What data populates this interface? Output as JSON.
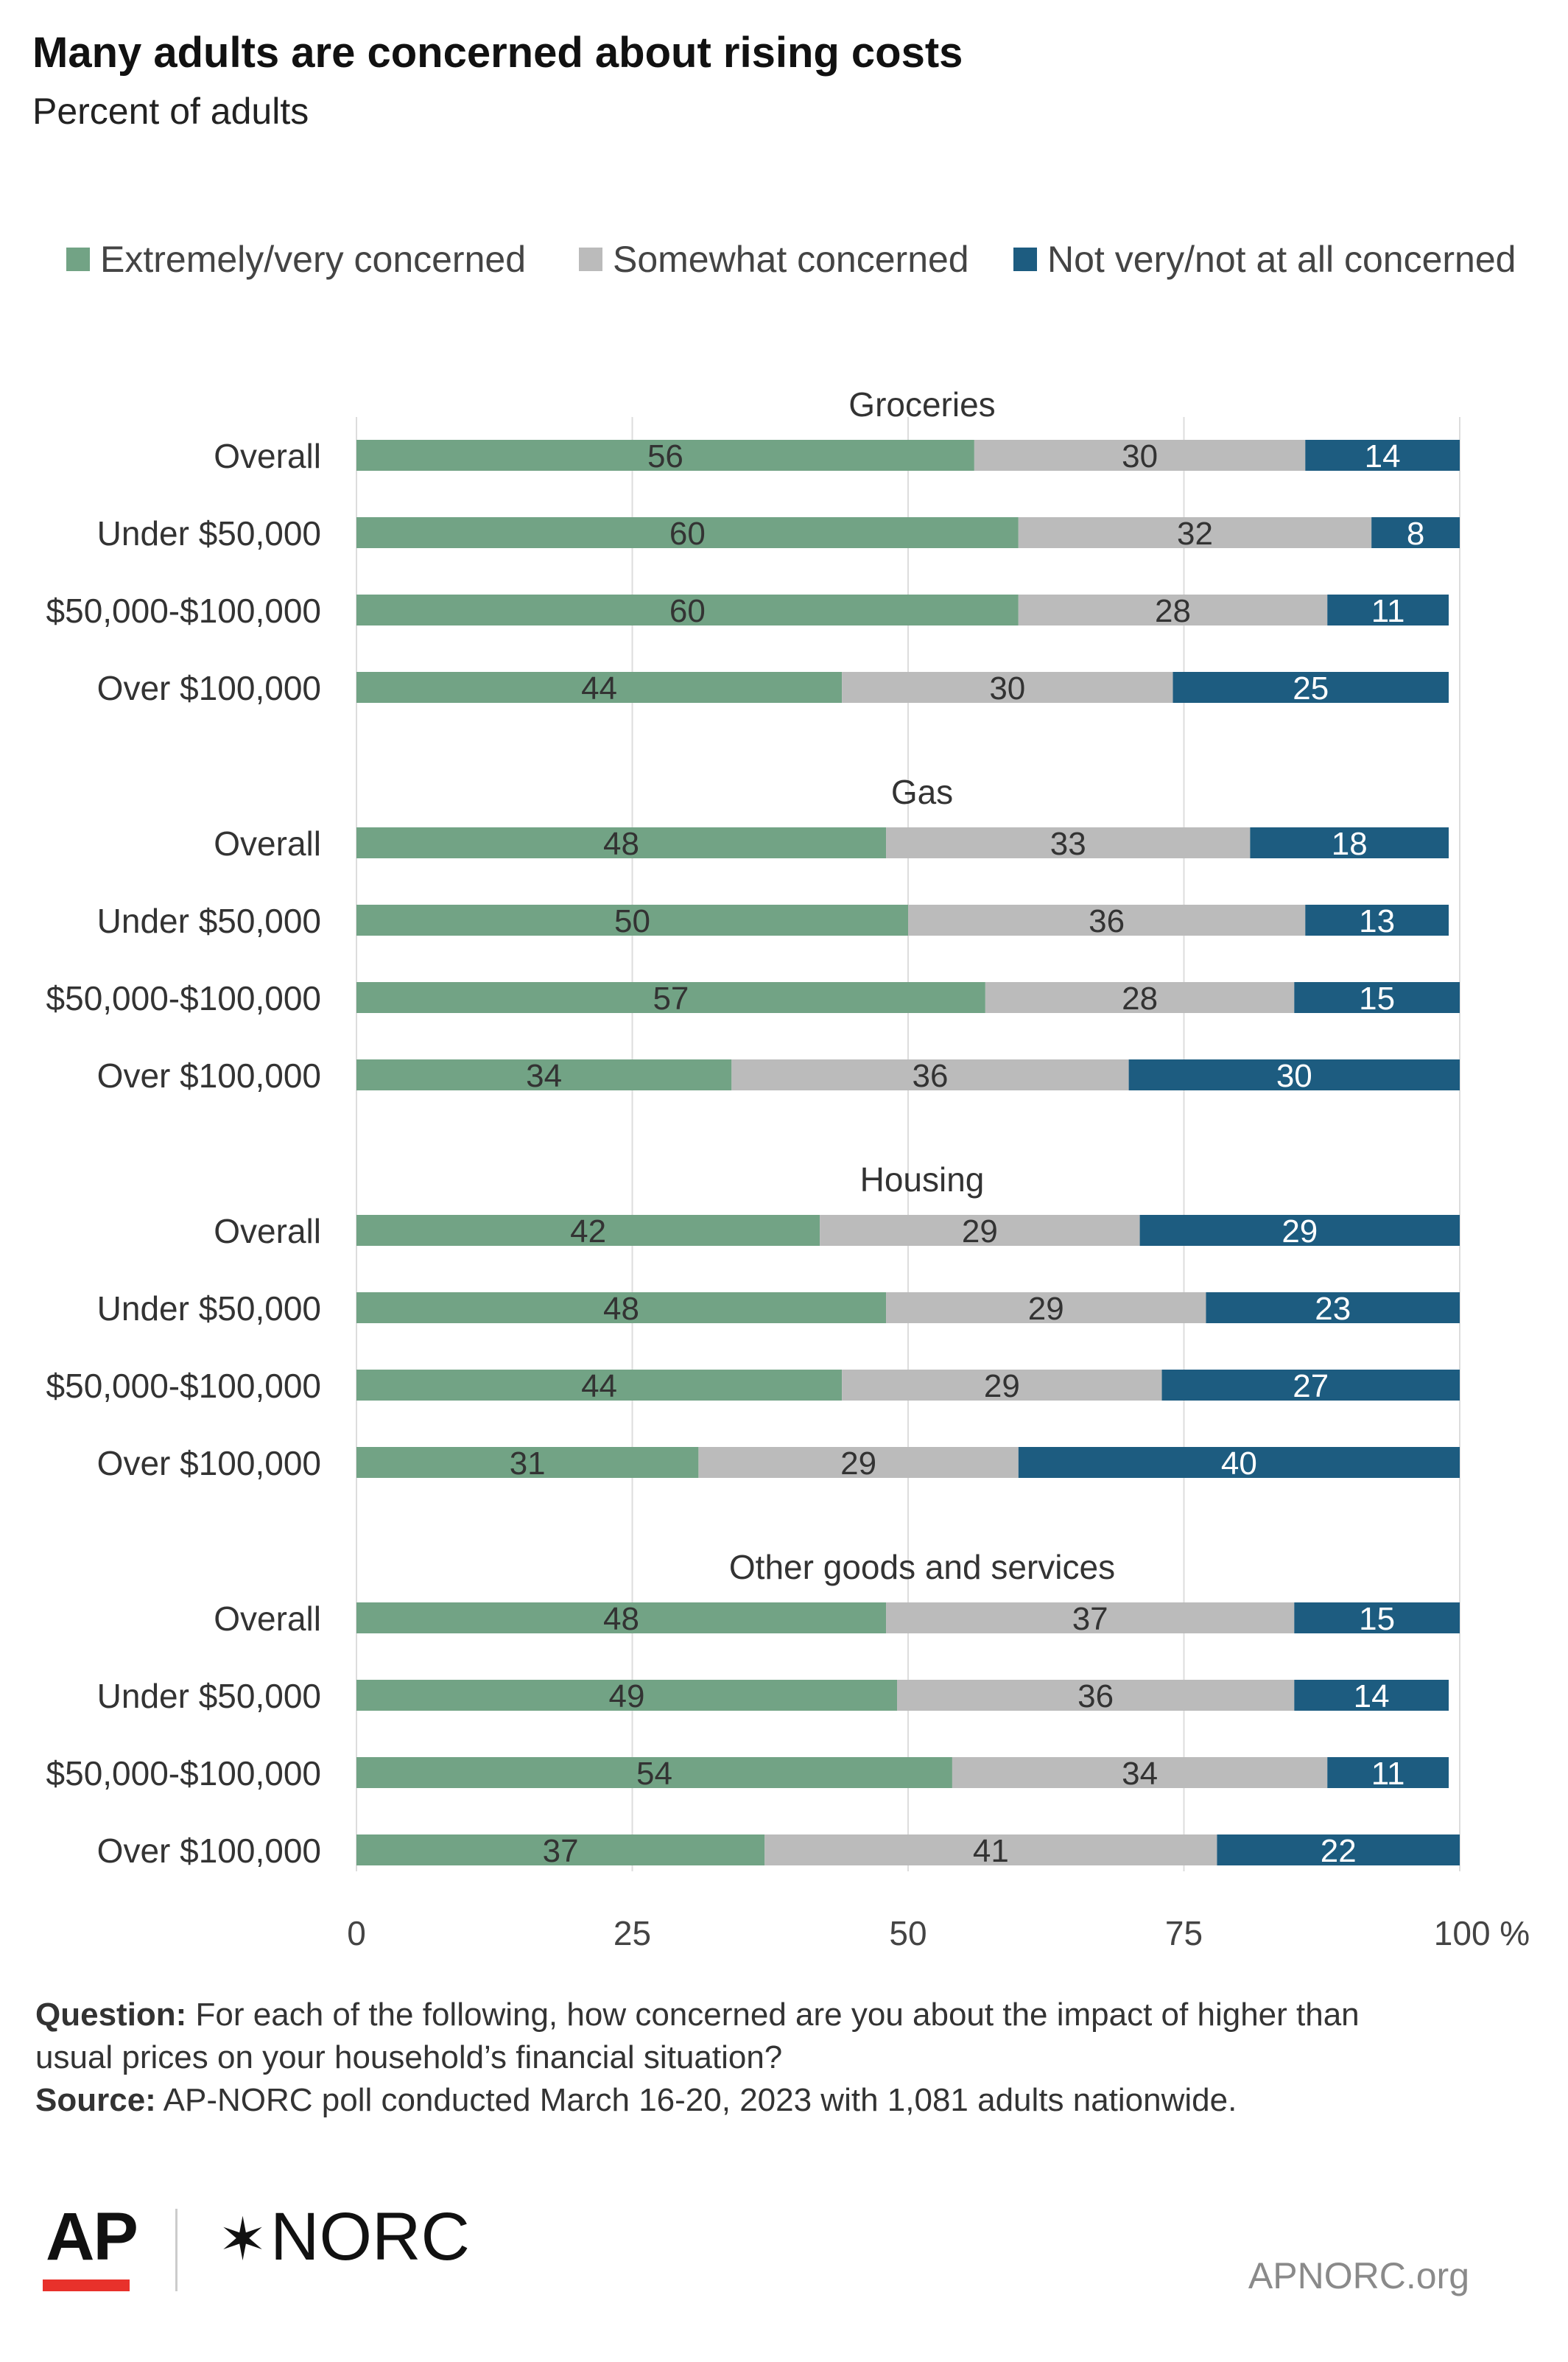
{
  "header": {
    "title": "Many adults are concerned about rising costs",
    "subtitle": "Percent of adults"
  },
  "footer": {
    "question_label": "Question:",
    "question_text_1": " For each of the following, how concerned are you about the impact of higher than",
    "question_text_2": "usual prices on your household’s financial situation?",
    "source_label": "Source:",
    "source_text": " AP-NORC poll conducted March 16-20, 2023 with 1,081 adults nationwide."
  },
  "logos": {
    "ap": "AP",
    "norc_star": "✶",
    "norc": "NORC",
    "site": "APNORC.org"
  },
  "chart_data": {
    "type": "bar",
    "orientation": "horizontal",
    "stacked": true,
    "xlim": [
      0,
      100
    ],
    "x_ticks": [
      "0",
      "25",
      "50",
      "75",
      "100 %"
    ],
    "grid": true,
    "legend_position": "top",
    "colors": {
      "extremely": "#72a385",
      "somewhat": "#bbbbbb",
      "not": "#1d5c80"
    },
    "series_names": [
      "Extremely/very concerned",
      "Somewhat concerned",
      "Not very/not at all concerned"
    ],
    "groups": [
      {
        "name": "Groceries",
        "rows": [
          {
            "label": "Overall",
            "values": [
              56,
              30,
              14
            ]
          },
          {
            "label": "Under $50,000",
            "values": [
              60,
              32,
              8
            ]
          },
          {
            "label": "$50,000-$100,000",
            "values": [
              60,
              28,
              11
            ]
          },
          {
            "label": "Over $100,000",
            "values": [
              44,
              30,
              25
            ]
          }
        ]
      },
      {
        "name": "Gas",
        "rows": [
          {
            "label": "Overall",
            "values": [
              48,
              33,
              18
            ]
          },
          {
            "label": "Under $50,000",
            "values": [
              50,
              36,
              13
            ]
          },
          {
            "label": "$50,000-$100,000",
            "values": [
              57,
              28,
              15
            ]
          },
          {
            "label": "Over $100,000",
            "values": [
              34,
              36,
              30
            ]
          }
        ]
      },
      {
        "name": "Housing",
        "rows": [
          {
            "label": "Overall",
            "values": [
              42,
              29,
              29
            ]
          },
          {
            "label": "Under $50,000",
            "values": [
              48,
              29,
              23
            ]
          },
          {
            "label": "$50,000-$100,000",
            "values": [
              44,
              29,
              27
            ]
          },
          {
            "label": "Over $100,000",
            "values": [
              31,
              29,
              40
            ]
          }
        ]
      },
      {
        "name": "Other goods and services",
        "rows": [
          {
            "label": "Overall",
            "values": [
              48,
              37,
              15
            ]
          },
          {
            "label": "Under $50,000",
            "values": [
              49,
              36,
              14
            ]
          },
          {
            "label": "$50,000-$100,000",
            "values": [
              54,
              34,
              11
            ]
          },
          {
            "label": "Over $100,000",
            "values": [
              37,
              41,
              22
            ]
          }
        ]
      }
    ]
  }
}
